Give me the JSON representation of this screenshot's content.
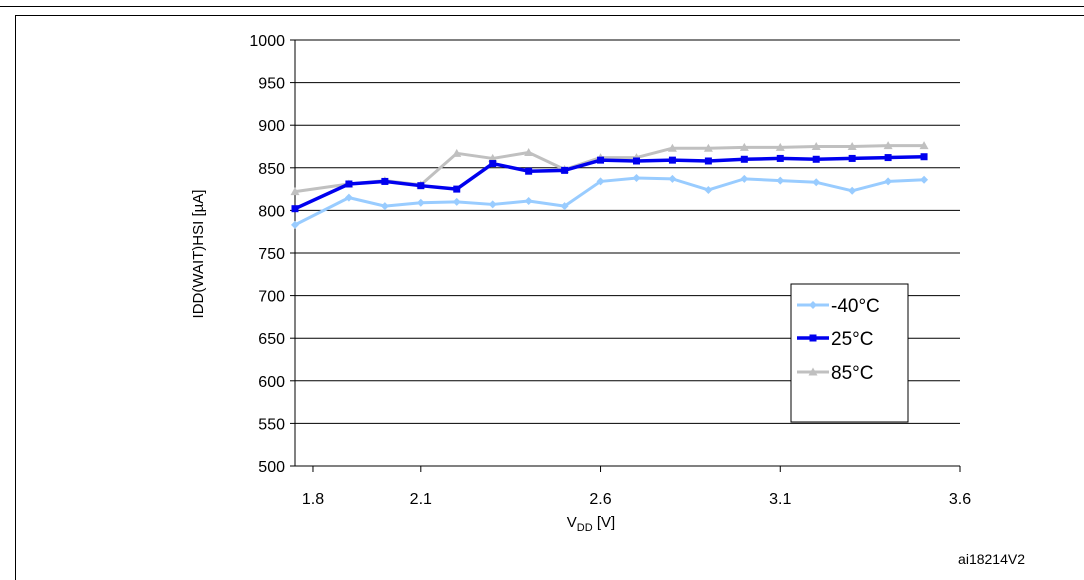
{
  "chart_data": {
    "type": "line",
    "title": "",
    "xlabel_main": "V",
    "xlabel_sub": "DD",
    "xlabel_unit": " [V]",
    "ylabel": "IDD(WAIT)HSI [µA]",
    "xlim": [
      1.75,
      3.6
    ],
    "ylim": [
      500,
      1000
    ],
    "x_ticks": [
      "1.8",
      "2.1",
      "2.6",
      "3.1",
      "3.6"
    ],
    "x_tick_values": [
      1.8,
      2.1,
      2.6,
      3.1,
      3.6
    ],
    "y_ticks": [
      "500",
      "550",
      "600",
      "650",
      "700",
      "750",
      "800",
      "850",
      "900",
      "950",
      "1000"
    ],
    "y_tick_values": [
      500,
      550,
      600,
      650,
      700,
      750,
      800,
      850,
      900,
      950,
      1000
    ],
    "grid": "horizontal",
    "legend_position": "right",
    "x": [
      1.75,
      1.9,
      2.0,
      2.1,
      2.2,
      2.3,
      2.4,
      2.5,
      2.6,
      2.7,
      2.8,
      2.9,
      3.0,
      3.1,
      3.2,
      3.3,
      3.4,
      3.5
    ],
    "series": [
      {
        "name": "-40°C",
        "color": "#99ccff",
        "marker": "diamond",
        "values": [
          783,
          815,
          805,
          809,
          810,
          807,
          811,
          805,
          834,
          838,
          837,
          824,
          837,
          835,
          833,
          823,
          834,
          836
        ]
      },
      {
        "name": "25°C",
        "color": "#0000ee",
        "marker": "square",
        "values": [
          802,
          831,
          834,
          829,
          825,
          855,
          846,
          847,
          859,
          858,
          859,
          858,
          860,
          861,
          860,
          861,
          862,
          863
        ]
      },
      {
        "name": "85°C",
        "color": "#c0c0c0",
        "marker": "triangle",
        "values": [
          822,
          831,
          835,
          830,
          867,
          861,
          868,
          848,
          862,
          862,
          873,
          873,
          874,
          874,
          875,
          875,
          876,
          876
        ]
      }
    ],
    "figure_code": "ai18214V2"
  }
}
